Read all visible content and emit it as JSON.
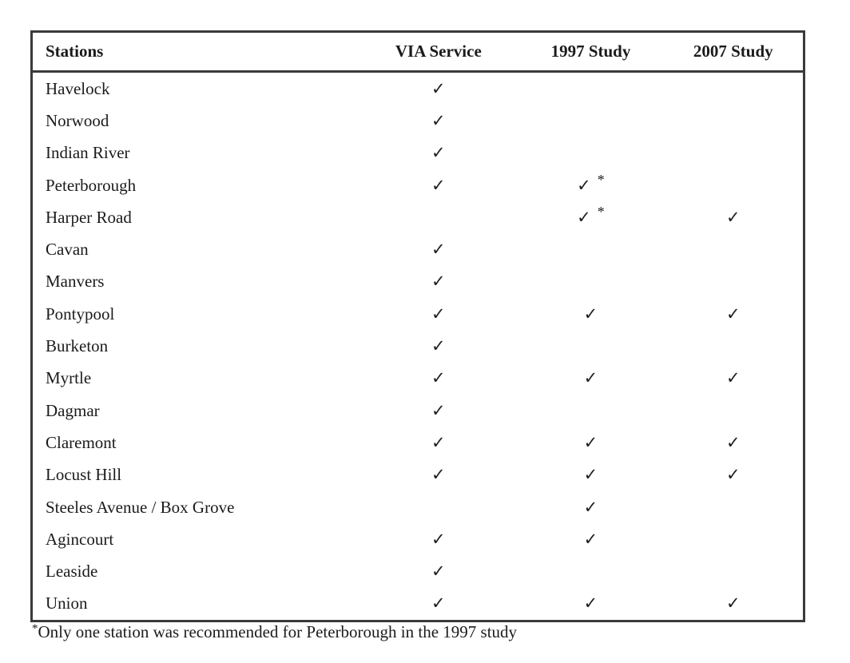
{
  "table": {
    "columns": [
      "Stations",
      "VIA Service",
      "1997 Study",
      "2007 Study"
    ],
    "checkmark_glyph": "✓",
    "asterisk_glyph": "*",
    "rows": [
      {
        "station": "Havelock",
        "via_service": true,
        "study_1997": false,
        "study_2007": false,
        "asterisk_1997": false
      },
      {
        "station": "Norwood",
        "via_service": true,
        "study_1997": false,
        "study_2007": false,
        "asterisk_1997": false
      },
      {
        "station": "Indian River",
        "via_service": true,
        "study_1997": false,
        "study_2007": false,
        "asterisk_1997": false
      },
      {
        "station": "Peterborough",
        "via_service": true,
        "study_1997": true,
        "study_2007": false,
        "asterisk_1997": true
      },
      {
        "station": "Harper Road",
        "via_service": false,
        "study_1997": true,
        "study_2007": true,
        "asterisk_1997": true
      },
      {
        "station": "Cavan",
        "via_service": true,
        "study_1997": false,
        "study_2007": false,
        "asterisk_1997": false
      },
      {
        "station": "Manvers",
        "via_service": true,
        "study_1997": false,
        "study_2007": false,
        "asterisk_1997": false
      },
      {
        "station": "Pontypool",
        "via_service": true,
        "study_1997": true,
        "study_2007": true,
        "asterisk_1997": false
      },
      {
        "station": "Burketon",
        "via_service": true,
        "study_1997": false,
        "study_2007": false,
        "asterisk_1997": false
      },
      {
        "station": "Myrtle",
        "via_service": true,
        "study_1997": true,
        "study_2007": true,
        "asterisk_1997": false
      },
      {
        "station": "Dagmar",
        "via_service": true,
        "study_1997": false,
        "study_2007": false,
        "asterisk_1997": false
      },
      {
        "station": "Claremont",
        "via_service": true,
        "study_1997": true,
        "study_2007": true,
        "asterisk_1997": false
      },
      {
        "station": "Locust Hill",
        "via_service": true,
        "study_1997": true,
        "study_2007": true,
        "asterisk_1997": false
      },
      {
        "station": "Steeles Avenue / Box Grove",
        "via_service": false,
        "study_1997": true,
        "study_2007": false,
        "asterisk_1997": false
      },
      {
        "station": "Agincourt",
        "via_service": true,
        "study_1997": true,
        "study_2007": false,
        "asterisk_1997": false
      },
      {
        "station": "Leaside",
        "via_service": true,
        "study_1997": false,
        "study_2007": false,
        "asterisk_1997": false
      },
      {
        "station": "Union",
        "via_service": true,
        "study_1997": true,
        "study_2007": true,
        "asterisk_1997": false
      }
    ]
  },
  "footnote": {
    "marker": "*",
    "text": "Only one station was recommended for Peterborough in the 1997 study"
  },
  "colors": {
    "text": "#1b1b1b",
    "border": "#3a3a3a",
    "background": "#ffffff"
  }
}
